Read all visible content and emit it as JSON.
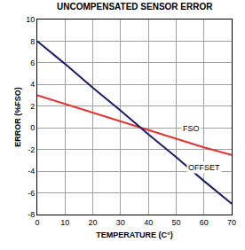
{
  "chart_data": {
    "type": "line",
    "title": "UNCOMPENSATED SENSOR ERROR",
    "x_label": "TEMPERATURE (C°)",
    "y_label": "ERROR (%FSO)",
    "x": [
      0,
      10,
      20,
      30,
      40,
      50,
      60,
      70
    ],
    "series": [
      {
        "name": "FSO",
        "color": "#e8302c",
        "values": [
          3,
          2.2,
          1.4,
          0.6,
          -0.2,
          -1.0,
          -1.8,
          -2.5
        ]
      },
      {
        "name": "OFFSET",
        "color": "#1c1a6a",
        "values": [
          8,
          5.9,
          3.7,
          1.6,
          -0.6,
          -2.7,
          -4.9,
          -7
        ]
      }
    ],
    "xlim": [
      0,
      70
    ],
    "xticks": [
      0,
      10,
      20,
      30,
      40,
      50,
      60,
      70
    ],
    "ylim": [
      -8,
      10
    ],
    "yticks": [
      -8,
      -6,
      -4,
      -2,
      0,
      2,
      4,
      6,
      8,
      10
    ],
    "grid": true
  }
}
